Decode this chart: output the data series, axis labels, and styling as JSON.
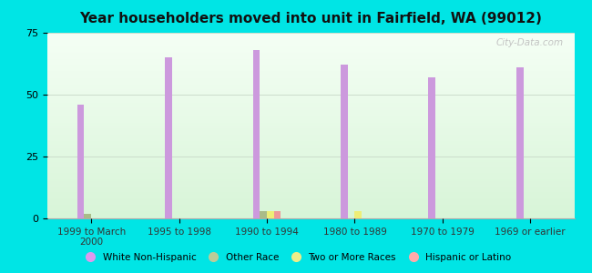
{
  "title": "Year householders moved into unit in Fairfield, WA (99012)",
  "categories": [
    "1999 to March\n2000",
    "1995 to 1998",
    "1990 to 1994",
    "1980 to 1989",
    "1970 to 1979",
    "1969 or earlier"
  ],
  "series": {
    "White Non-Hispanic": {
      "values": [
        46,
        65,
        68,
        62,
        57,
        61
      ],
      "color": "#cc99dd"
    },
    "Other Race": {
      "values": [
        2,
        0,
        3,
        0,
        0,
        0
      ],
      "color": "#aabb88"
    },
    "Two or More Races": {
      "values": [
        0,
        0,
        3,
        3,
        0,
        0
      ],
      "color": "#eeee77"
    },
    "Hispanic or Latino": {
      "values": [
        0,
        0,
        3,
        0,
        0,
        0
      ],
      "color": "#ee9999"
    }
  },
  "ylim": [
    0,
    75
  ],
  "yticks": [
    0,
    25,
    50,
    75
  ],
  "bg_color_top": "#f5fff5",
  "bg_color_bottom": "#d8f5d8",
  "outer_bg": "#00e5e5",
  "grid_color": "#ccddcc",
  "bar_width": 0.08,
  "legend_colors": [
    "#dd99ee",
    "#bbcc99",
    "#eeee88",
    "#ffaaaa"
  ],
  "legend_labels": [
    "White Non-Hispanic",
    "Other Race",
    "Two or More Races",
    "Hispanic or Latino"
  ],
  "watermark": "City-Data.com"
}
